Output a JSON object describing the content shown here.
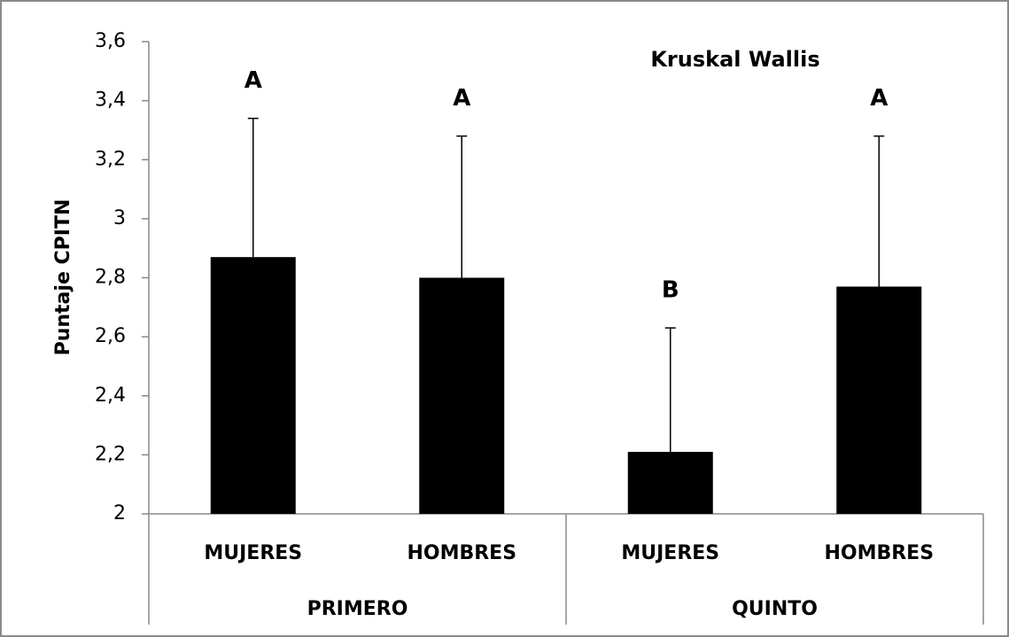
{
  "chart_data": {
    "type": "bar",
    "title": "Kruskal Wallis",
    "y_label": "Puntaje CPITN",
    "categories": [
      "MUJERES",
      "HOMBRES",
      "MUJERES",
      "HOMBRES"
    ],
    "groups": [
      "PRIMERO",
      "QUINTO"
    ],
    "values": [
      2.87,
      2.8,
      2.21,
      2.77
    ],
    "errors": [
      0.47,
      0.48,
      0.42,
      0.51
    ],
    "annotations": [
      "A",
      "A",
      "B",
      "A"
    ],
    "color": "#000000",
    "ylim": [
      2,
      3.6
    ],
    "yticks": [
      2,
      {
        "value": 2.2,
        "label": "2,2"
      },
      {
        "value": 2.4,
        "label": "2,4"
      },
      {
        "value": 2.6,
        "label": "2,6"
      },
      {
        "value": 2.8,
        "label": "2,8"
      },
      3,
      {
        "value": 3.2,
        "label": "3,2"
      },
      {
        "value": 3.4,
        "label": "3,4"
      },
      {
        "value": 3.6,
        "label": "3,6"
      }
    ],
    "grid": false
  }
}
